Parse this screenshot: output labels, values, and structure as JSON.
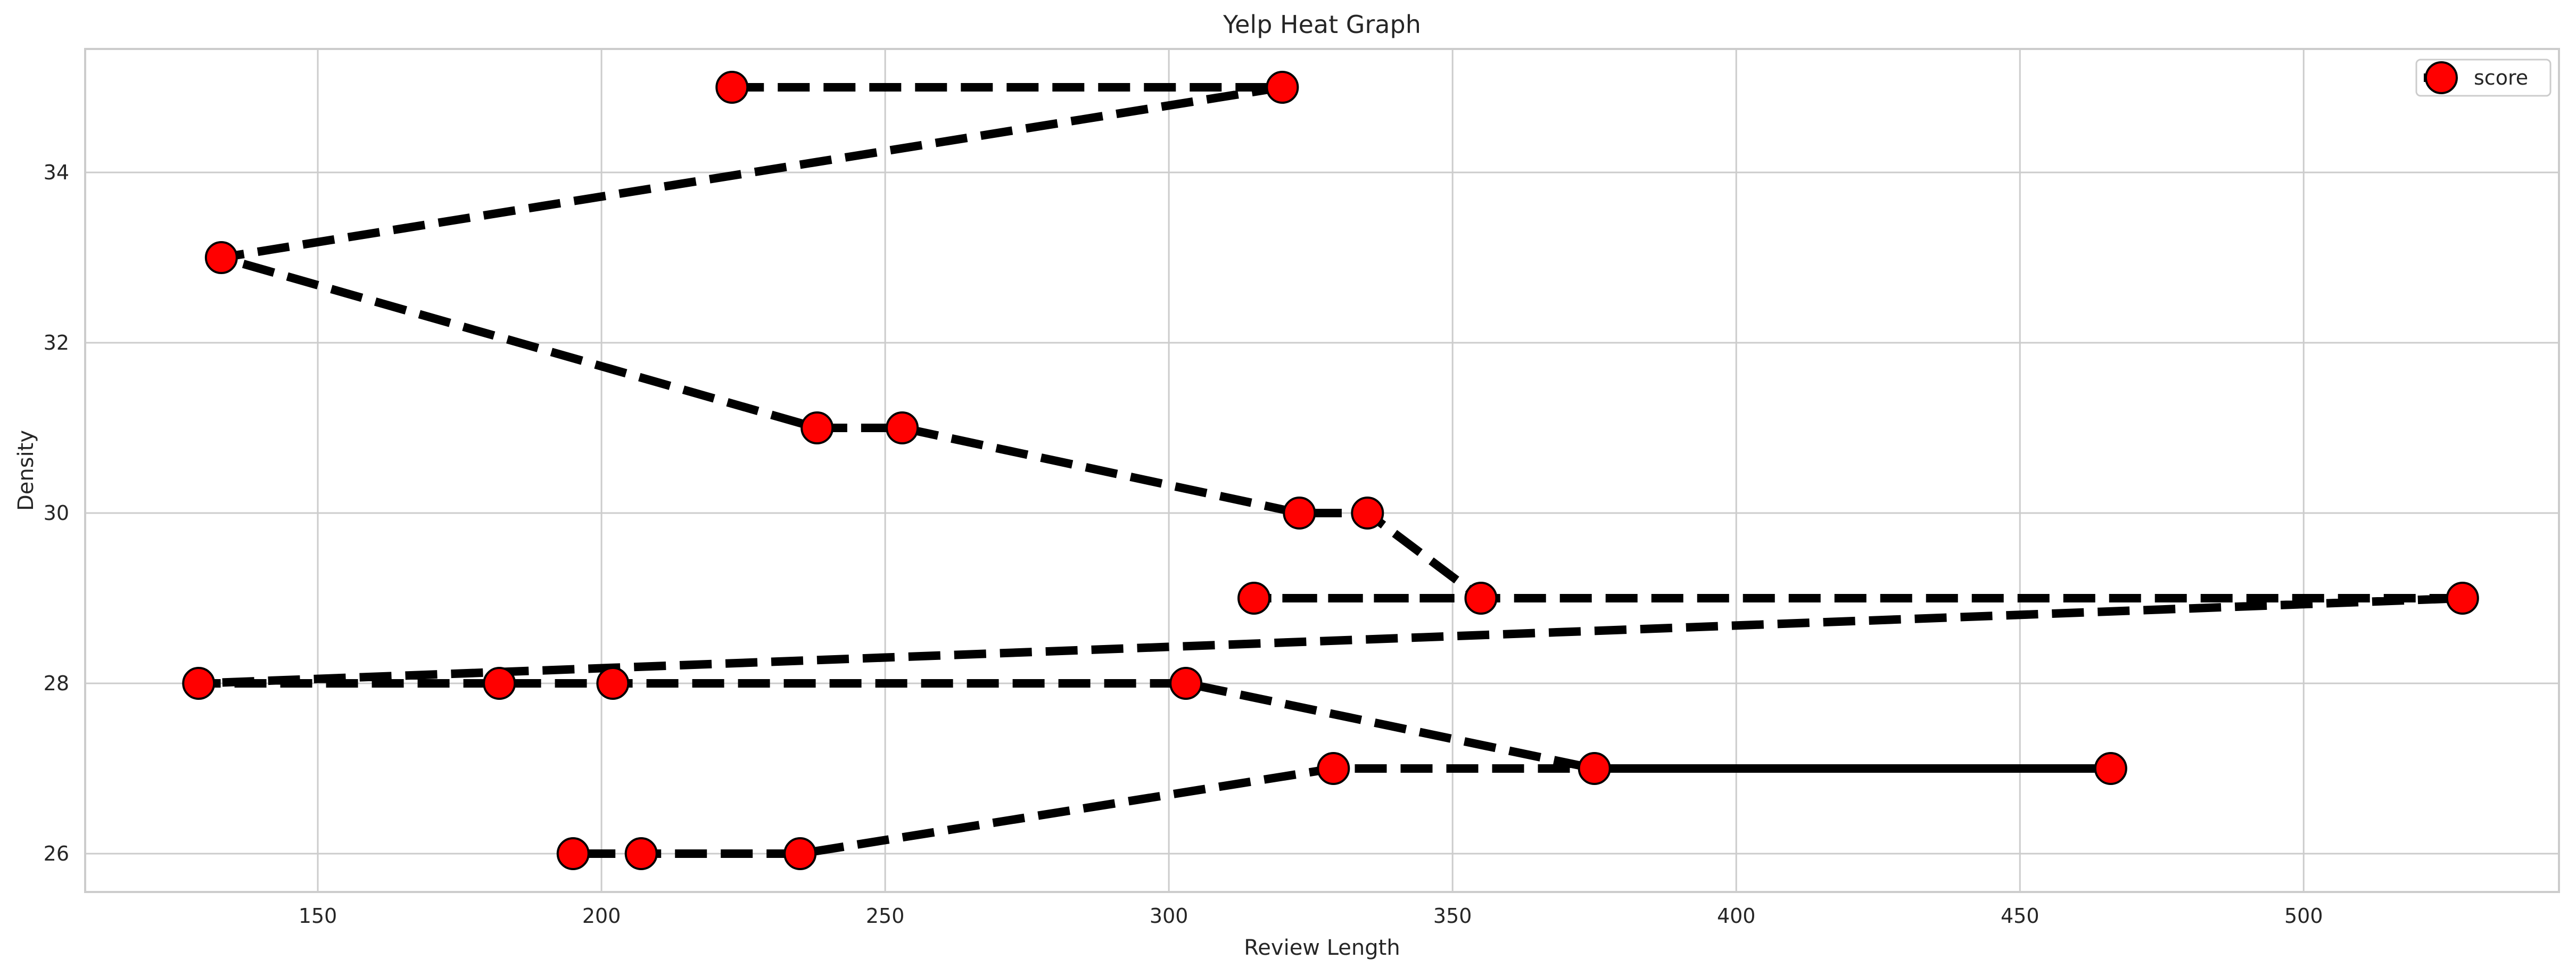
{
  "chart_data": {
    "type": "line",
    "title": "Yelp Heat Graph",
    "xlabel": "Review Length",
    "ylabel": "Density",
    "xlim": [
      109,
      545
    ],
    "ylim": [
      25.55,
      35.45
    ],
    "xticks": [
      150,
      200,
      250,
      300,
      350,
      400,
      450,
      500
    ],
    "yticks": [
      26,
      28,
      30,
      32,
      34
    ],
    "grid": true,
    "legend_position": "top-right",
    "series": [
      {
        "name": "score",
        "line_color": "#000000",
        "line_style": "dashed",
        "marker": "circle",
        "marker_color": "#ff0000",
        "marker_edge_color": "#000000",
        "points": [
          {
            "x": 223,
            "y": 35
          },
          {
            "x": 320,
            "y": 35
          },
          {
            "x": 133,
            "y": 33
          },
          {
            "x": 238,
            "y": 31
          },
          {
            "x": 253,
            "y": 31
          },
          {
            "x": 323,
            "y": 30
          },
          {
            "x": 335,
            "y": 30
          },
          {
            "x": 355,
            "y": 29
          },
          {
            "x": 315,
            "y": 29
          },
          {
            "x": 528,
            "y": 29
          },
          {
            "x": 129,
            "y": 28
          },
          {
            "x": 182,
            "y": 28
          },
          {
            "x": 202,
            "y": 28
          },
          {
            "x": 303,
            "y": 28
          },
          {
            "x": 375,
            "y": 27
          },
          {
            "x": 466,
            "y": 27
          },
          {
            "x": 329,
            "y": 27
          },
          {
            "x": 235,
            "y": 26
          },
          {
            "x": 207,
            "y": 26
          },
          {
            "x": 195,
            "y": 26
          }
        ]
      }
    ]
  }
}
